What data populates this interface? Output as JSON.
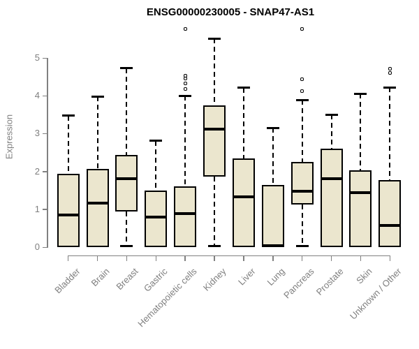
{
  "chart_data": {
    "type": "boxplot",
    "title": "ENSG00000230005 - SNAP47-AS1",
    "ylabel": "Expression",
    "xlabel": "",
    "ylim": [
      0,
      5.8
    ],
    "yticks": [
      0,
      1,
      2,
      3,
      4,
      5
    ],
    "grid": false,
    "legend": "none",
    "categories": [
      "Bladder",
      "Brain",
      "Breast",
      "Gastric",
      "Hematopoietic cells",
      "Kidney",
      "Liver",
      "Lung",
      "Pancreas",
      "Prostate",
      "Skin",
      "Unknown / Other"
    ],
    "boxes": [
      {
        "name": "Bladder",
        "whisker_low": 0,
        "q1": 0,
        "median": 0.84,
        "q3": 1.94,
        "whisker_high": 3.47,
        "outliers": []
      },
      {
        "name": "Brain",
        "whisker_low": 0,
        "q1": 0,
        "median": 1.16,
        "q3": 2.07,
        "whisker_high": 3.98,
        "outliers": []
      },
      {
        "name": "Breast",
        "whisker_low": 0.02,
        "q1": 0.94,
        "median": 1.8,
        "q3": 2.44,
        "whisker_high": 4.73,
        "outliers": []
      },
      {
        "name": "Gastric",
        "whisker_low": 0,
        "q1": 0,
        "median": 0.79,
        "q3": 1.5,
        "whisker_high": 2.81,
        "outliers": []
      },
      {
        "name": "Hematopoietic cells",
        "whisker_low": 0,
        "q1": 0,
        "median": 0.89,
        "q3": 1.61,
        "whisker_high": 4.0,
        "outliers": [
          4.17,
          4.32,
          4.46,
          4.53,
          5.76
        ]
      },
      {
        "name": "Kidney",
        "whisker_low": 0.02,
        "q1": 1.87,
        "median": 3.12,
        "q3": 3.75,
        "whisker_high": 5.51,
        "outliers": []
      },
      {
        "name": "Liver",
        "whisker_low": 0,
        "q1": 0,
        "median": 1.32,
        "q3": 2.35,
        "whisker_high": 4.21,
        "outliers": []
      },
      {
        "name": "Lung",
        "whisker_low": 0,
        "q1": 0,
        "median": 0.04,
        "q3": 1.65,
        "whisker_high": 3.15,
        "outliers": []
      },
      {
        "name": "Pancreas",
        "whisker_low": 0.02,
        "q1": 1.12,
        "median": 1.47,
        "q3": 2.26,
        "whisker_high": 3.89,
        "outliers": [
          4.13,
          4.44,
          5.76
        ]
      },
      {
        "name": "Prostate",
        "whisker_low": 0,
        "q1": 0,
        "median": 1.81,
        "q3": 2.6,
        "whisker_high": 3.5,
        "outliers": []
      },
      {
        "name": "Skin",
        "whisker_low": 0,
        "q1": 0,
        "median": 1.43,
        "q3": 2.03,
        "whisker_high": 4.05,
        "outliers": []
      },
      {
        "name": "Unknown / Other",
        "whisker_low": 0,
        "q1": 0,
        "median": 0.58,
        "q3": 1.78,
        "whisker_high": 4.22,
        "outliers": [
          4.61,
          4.72
        ]
      }
    ],
    "colors": {
      "box_fill": "#ebe6ce",
      "box_border": "#000000",
      "median": "#000000",
      "whisker": "#000000",
      "axis_line": "#808080",
      "axis_text": "#7f7f7f",
      "title_text": "#000000"
    }
  }
}
